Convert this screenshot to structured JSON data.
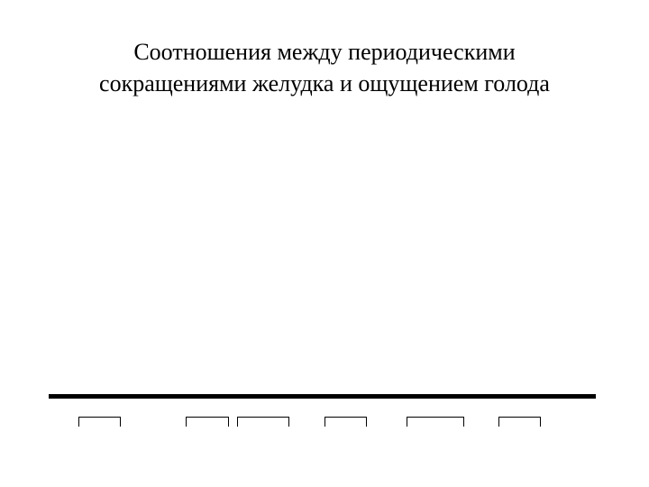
{
  "slide": {
    "title_lines": [
      "Соотношения между периодическими",
      "сокращениями желудка и ощущением голода"
    ]
  }
}
